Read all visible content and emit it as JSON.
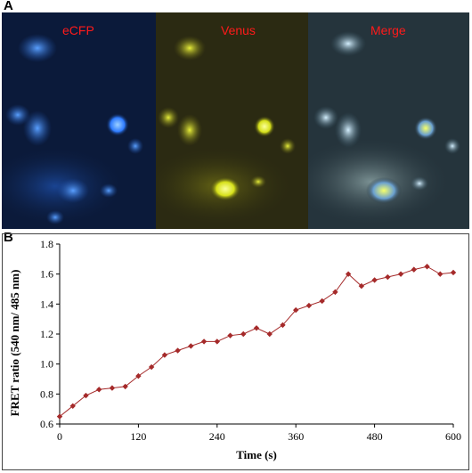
{
  "panel_a": {
    "letter": "A",
    "channels": [
      {
        "label": "eCFP",
        "color": "#1f6fff"
      },
      {
        "label": "Venus",
        "color": "#d8e21a"
      },
      {
        "label": "Merge",
        "color": "#8ccfe0"
      }
    ],
    "label_color": "#ff1a1a"
  },
  "panel_b": {
    "letter": "B"
  },
  "chart_data": {
    "type": "line",
    "title": "",
    "xlabel": "Time (s)",
    "ylabel": "FRET ratio (540 nm/ 485 nm)",
    "xlim": [
      0,
      600
    ],
    "ylim": [
      0.6,
      1.8
    ],
    "xticks": [
      0,
      120,
      240,
      360,
      480,
      600
    ],
    "yticks": [
      0.6,
      0.8,
      1.0,
      1.2,
      1.4,
      1.6,
      1.8
    ],
    "grid": false,
    "legend": "none",
    "series_color": "#a52a2a",
    "marker": "diamond",
    "series": [
      {
        "x": [
          0,
          20,
          40,
          60,
          80,
          100,
          120,
          140,
          160,
          180,
          200,
          220,
          240,
          260,
          280,
          300,
          320,
          340,
          360,
          380,
          400,
          420,
          440,
          460,
          480,
          500,
          520,
          540,
          560,
          580,
          600
        ],
        "y": [
          0.65,
          0.72,
          0.79,
          0.83,
          0.84,
          0.85,
          0.92,
          0.98,
          1.06,
          1.09,
          1.12,
          1.15,
          1.15,
          1.19,
          1.2,
          1.24,
          1.2,
          1.26,
          1.36,
          1.39,
          1.42,
          1.48,
          1.6,
          1.52,
          1.56,
          1.58,
          1.6,
          1.63,
          1.65,
          1.6,
          1.61
        ]
      }
    ]
  }
}
